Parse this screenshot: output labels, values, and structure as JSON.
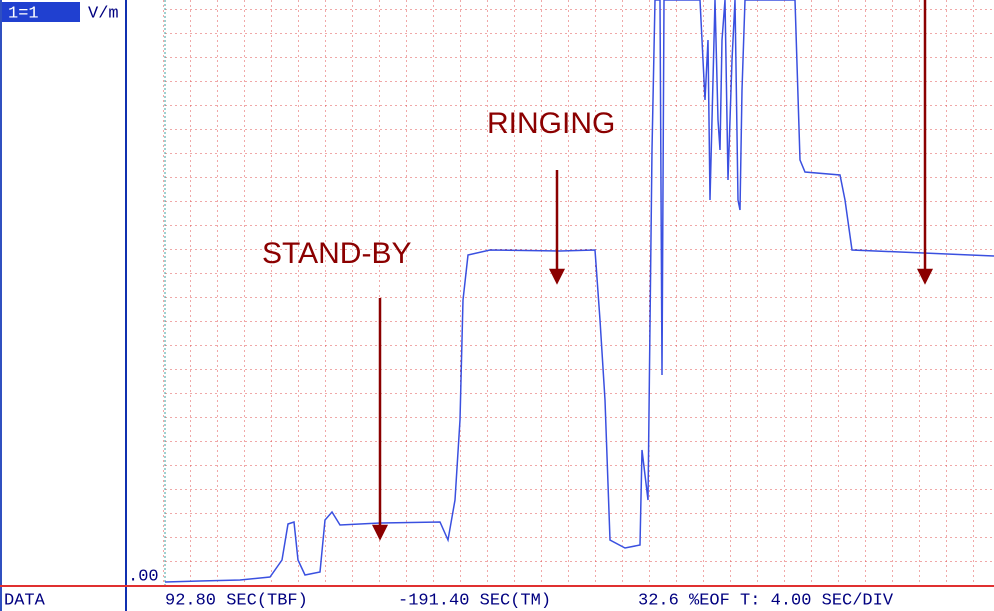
{
  "header": {
    "channel": "1=1",
    "unit": "V/m",
    "origin_label": ".00"
  },
  "annotations": {
    "standby": "STAND-BY",
    "ringing": "RINGING"
  },
  "status_bar": {
    "mode": "DATA",
    "tbf": "92.80 SEC(TBF)",
    "tm": "-191.40 SEC(TM)",
    "eof_and_base": "32.6 %EOF T: 4.00 SEC/DIV"
  }
}
